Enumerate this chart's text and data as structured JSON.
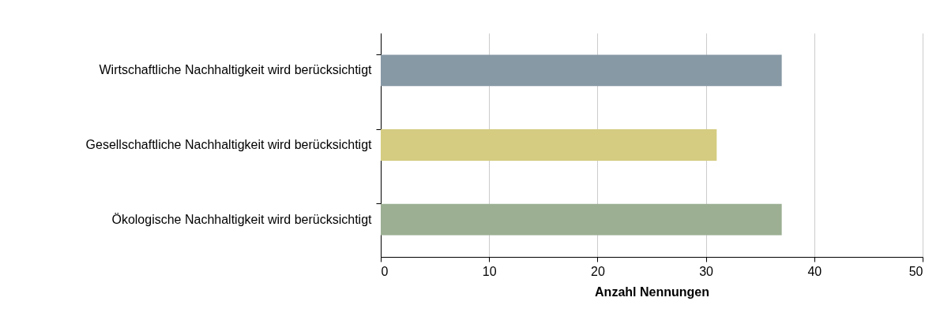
{
  "chart_data": {
    "type": "bar",
    "orientation": "horizontal",
    "categories": [
      "Wirtschaftliche Nachhaltigkeit wird berücksichtigt",
      "Gesellschaftliche Nachhaltigkeit wird berücksichtigt",
      "Ökologische Nachhaltigkeit wird berücksichtigt"
    ],
    "values": [
      37,
      31,
      37
    ],
    "colors": [
      "#8799a5",
      "#d5cc81",
      "#9caf93"
    ],
    "xlabel": "Anzahl Nennungen",
    "xlim": [
      0,
      50
    ],
    "xticks": [
      0,
      10,
      20,
      30,
      40,
      50
    ],
    "grid": "x"
  }
}
